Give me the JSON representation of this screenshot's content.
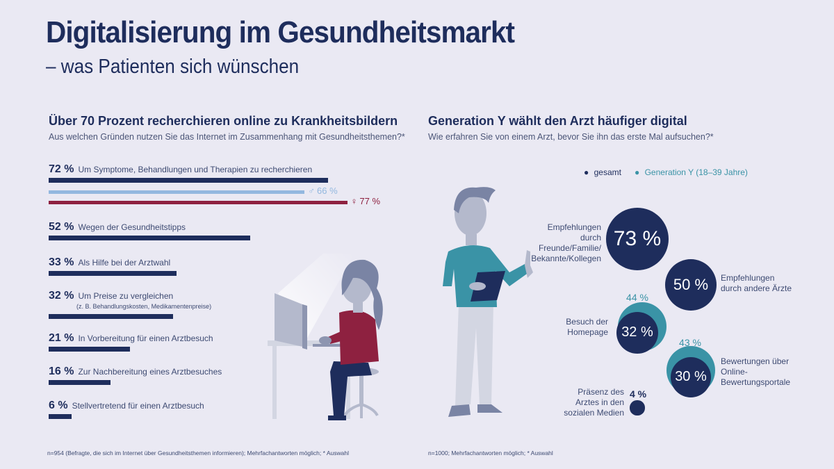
{
  "header": {
    "title": "Digitalisierung im Gesundheitsmarkt",
    "subtitle": "– was Patienten sich wünschen"
  },
  "colors": {
    "navy": "#1e2d5c",
    "male": "#93b8df",
    "female": "#8e2140",
    "teal": "#3a93a6",
    "background": "#eae9f3"
  },
  "chart_data": [
    {
      "type": "bar",
      "orientation": "horizontal",
      "title": "Über 70 Prozent recherchieren online zu Krankheitsbildern",
      "subtitle": "Aus welchen Gründen nutzen Sie das Internet im Zusammenhang mit Gesundheitsthemen?*",
      "xlim": [
        0,
        100
      ],
      "unit": "%",
      "categories": [
        "Um Symptome, Behandlungen und Therapien zu recherchieren",
        "Wegen der Gesundheitstipps",
        "Als Hilfe bei der Arztwahl",
        "Um Preise zu vergleichen",
        "In Vorbereitung für einen Arztbesuch",
        "Zur Nachbereitung eines Arztbesuches",
        "Stellvertretend für einen Arztbesuch"
      ],
      "notes": [
        "",
        "",
        "",
        "(z. B. Behandlungskosten, Medikamentenpreise)",
        "",
        "",
        ""
      ],
      "values": [
        72,
        52,
        33,
        32,
        21,
        16,
        6
      ],
      "value_labels": [
        "72 %",
        "52 %",
        "33 %",
        "32 %",
        "21 %",
        "16 %",
        "6 %"
      ],
      "gender_split": {
        "category": "Um Symptome, Behandlungen und Therapien zu recherchieren",
        "male": {
          "symbol": "♂",
          "value": 66,
          "label": "66 %"
        },
        "female": {
          "symbol": "♀",
          "value": 77,
          "label": "77 %"
        }
      },
      "footnote": "n=954 (Befragte, die sich im Internet über Gesundheitsthemen informieren); Mehrfachantworten möglich; * Auswahl"
    },
    {
      "type": "bubble",
      "title": "Generation Y wählt den Arzt häufiger digital",
      "subtitle": "Wie erfahren Sie von einem Arzt, bevor Sie ihn das erste Mal aufsuchen?*",
      "legend": [
        {
          "name": "gesamt",
          "color": "#1e2d5c"
        },
        {
          "name": "Generation Y (18–39 Jahre)",
          "color": "#3a93a6"
        }
      ],
      "legend_position": "top-right",
      "items": [
        {
          "label": "Empfehlungen durch Freunde/Familie/ Bekannte/Kollegen",
          "gesamt": 73,
          "gesamt_label": "73 %",
          "geny": null,
          "geny_label": ""
        },
        {
          "label": "Empfehlungen durch andere Ärzte",
          "gesamt": 50,
          "gesamt_label": "50 %",
          "geny": null,
          "geny_label": ""
        },
        {
          "label": "Besuch der Homepage",
          "gesamt": 32,
          "gesamt_label": "32 %",
          "geny": 44,
          "geny_label": "44 %"
        },
        {
          "label": "Bewertungen über Online- Bewertungsportale",
          "gesamt": 30,
          "gesamt_label": "30 %",
          "geny": 43,
          "geny_label": "43 %"
        },
        {
          "label": "Präsenz des Arztes in den sozialen Medien",
          "gesamt": 4,
          "gesamt_label": "4 %",
          "geny": null,
          "geny_label": ""
        }
      ],
      "footnote": "n=1000; Mehrfachantworten möglich; * Auswahl"
    }
  ]
}
